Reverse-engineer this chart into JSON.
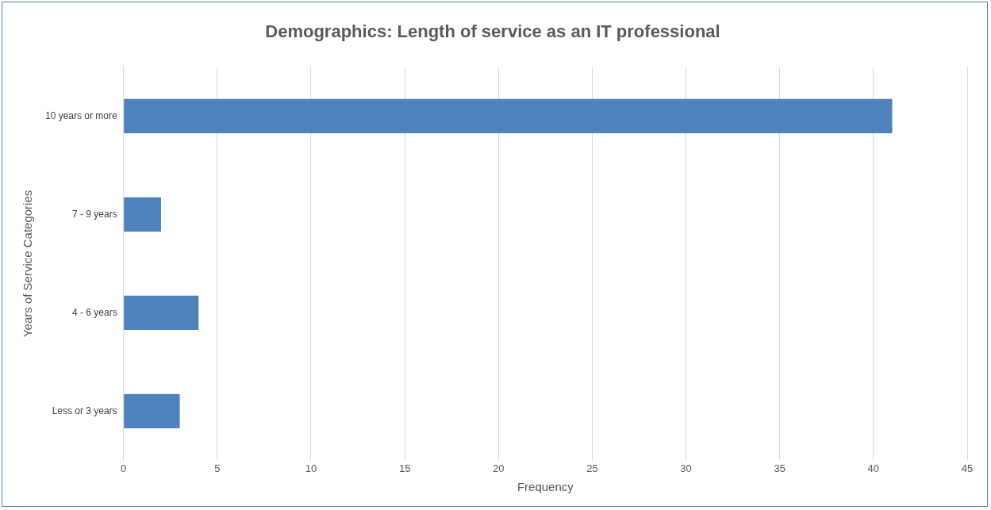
{
  "chart_data": {
    "type": "bar",
    "orientation": "horizontal",
    "title": "Demographics: Length of service as an IT professional",
    "xlabel": "Frequency",
    "ylabel": "Years of Service Categories",
    "categories": [
      "10 years or more",
      "7 - 9 years",
      "4 - 6 years",
      "Less or 3 years"
    ],
    "values": [
      41,
      2,
      4,
      3
    ],
    "color": "#4f81bd",
    "xlim": [
      0,
      45
    ],
    "xticks": [
      0,
      5,
      10,
      15,
      20,
      25,
      30,
      35,
      40,
      45
    ],
    "grid": "x",
    "legend": false
  }
}
